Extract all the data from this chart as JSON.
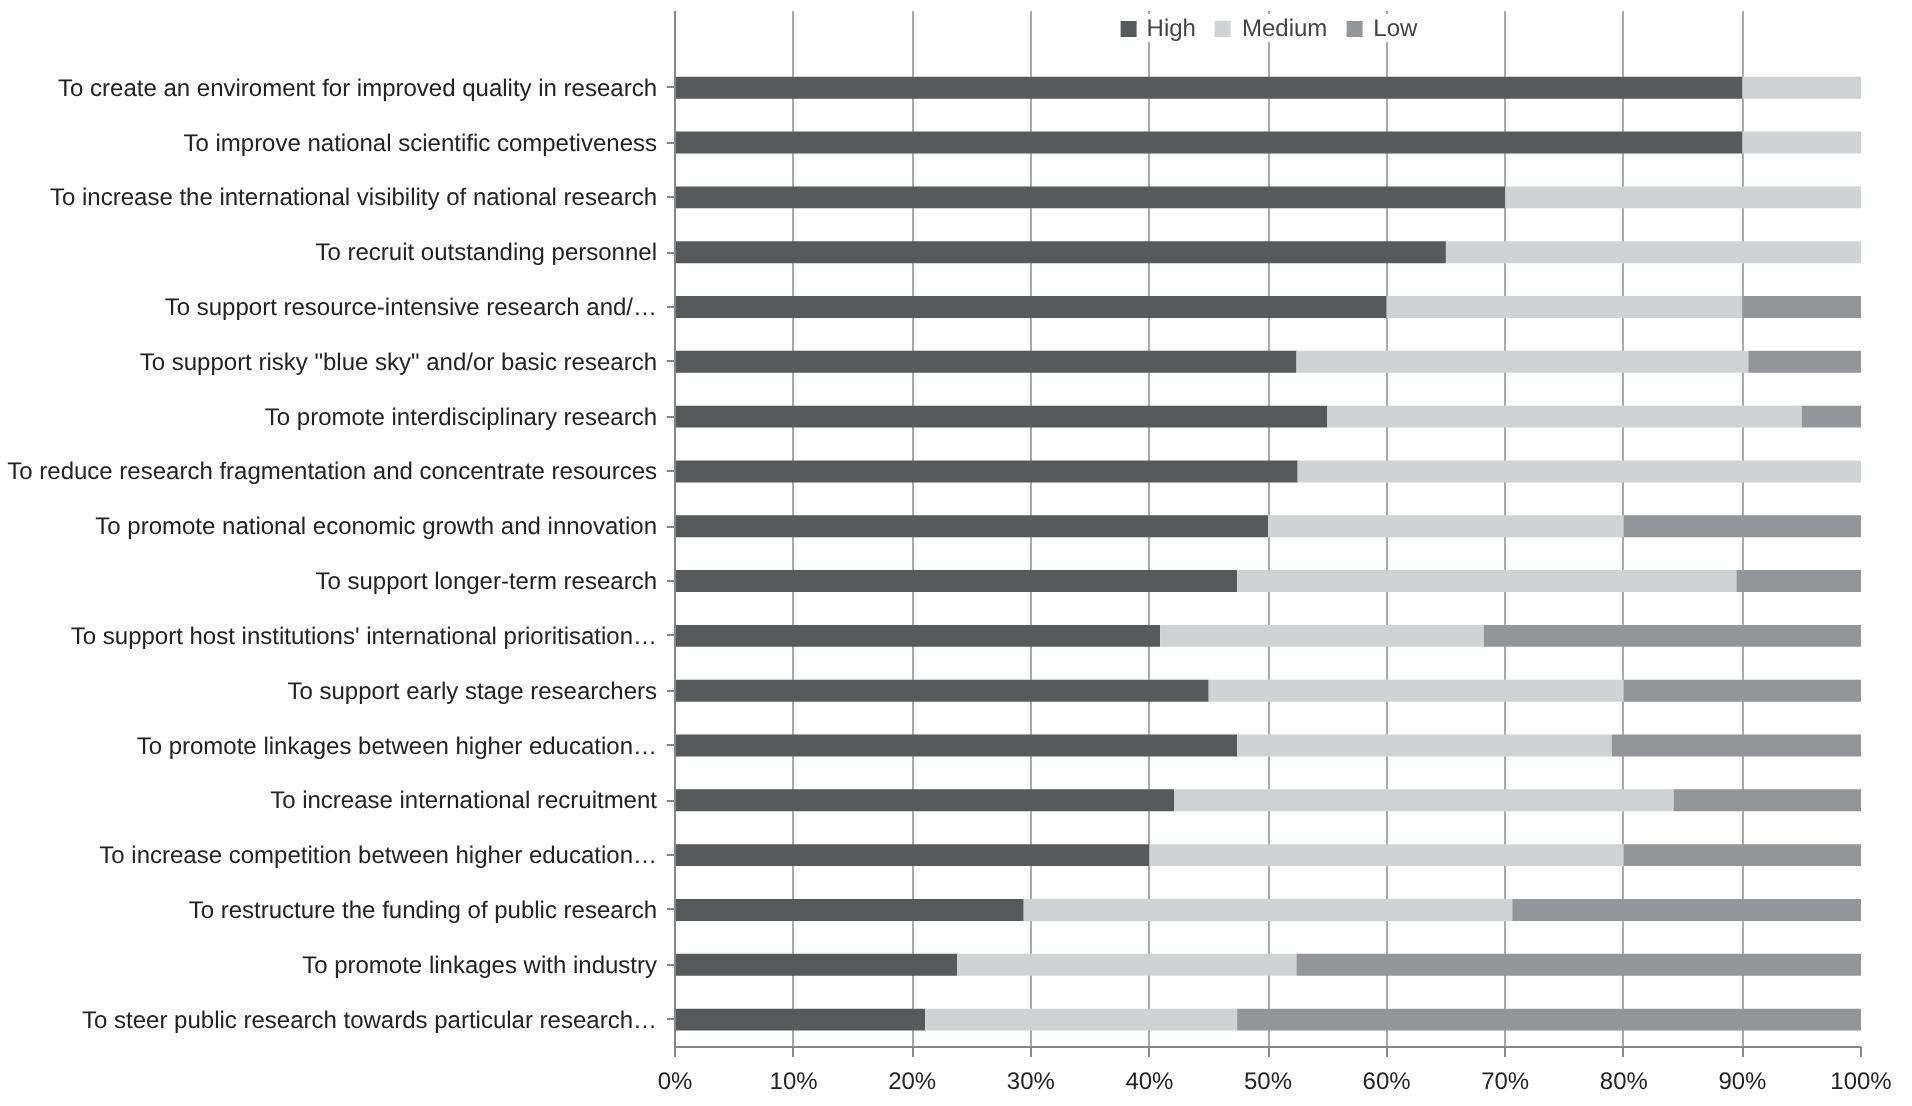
{
  "chart_data": {
    "type": "bar",
    "orientation": "horizontal",
    "stacked": true,
    "legend": "top",
    "grid": "x",
    "categories": [
      "To create an enviroment for improved quality in research",
      "To improve national scientific competiveness",
      "To increase the international visibility of national research",
      "To recruit outstanding personnel",
      "To support resource-intensive research and/…",
      "To support risky \"blue sky\" and/or basic research",
      "To promote interdisciplinary research",
      "To reduce research fragmentation and concentrate resources",
      "To promote national economic growth and innovation",
      "To support longer-term research",
      "To support host institutions' international prioritisation…",
      "To support early stage researchers",
      "To promote linkages between higher education…",
      "To increase international recruitment",
      "To increase competition between higher education…",
      "To restructure the funding of public research",
      "To promote linkages with industry",
      "To steer public research towards particular research…"
    ],
    "series": [
      {
        "name": "High",
        "color": "#58595b",
        "values": [
          90,
          90,
          70,
          65,
          60,
          52.4,
          55,
          52.5,
          50,
          47.4,
          40.9,
          45,
          47.4,
          42.1,
          40,
          29.4,
          23.8,
          21.1
        ]
      },
      {
        "name": "Medium",
        "color": "#d1d2d4",
        "values": [
          10,
          10,
          30,
          35,
          30,
          38.1,
          40,
          47.5,
          30,
          42.1,
          27.3,
          35,
          31.6,
          42.1,
          40,
          41.2,
          28.6,
          26.3
        ]
      },
      {
        "name": "Low",
        "color": "#939598",
        "values": [
          0,
          0,
          0,
          0,
          10,
          9.5,
          5,
          0,
          20,
          10.5,
          31.8,
          20,
          21,
          15.8,
          20,
          29.4,
          47.6,
          52.6
        ]
      }
    ],
    "xlim": [
      0,
      100
    ],
    "xticks": [
      {
        "value": 0,
        "label": "0%"
      },
      {
        "value": 10,
        "label": "10%"
      },
      {
        "value": 20,
        "label": "20%"
      },
      {
        "value": 30,
        "label": "30%"
      },
      {
        "value": 40,
        "label": "40%"
      },
      {
        "value": 50,
        "label": "50%"
      },
      {
        "value": 60,
        "label": "60%"
      },
      {
        "value": 70,
        "label": "70%"
      },
      {
        "value": 80,
        "label": "80%"
      },
      {
        "value": 90,
        "label": "90%"
      },
      {
        "value": 100,
        "label": "100%"
      }
    ]
  }
}
